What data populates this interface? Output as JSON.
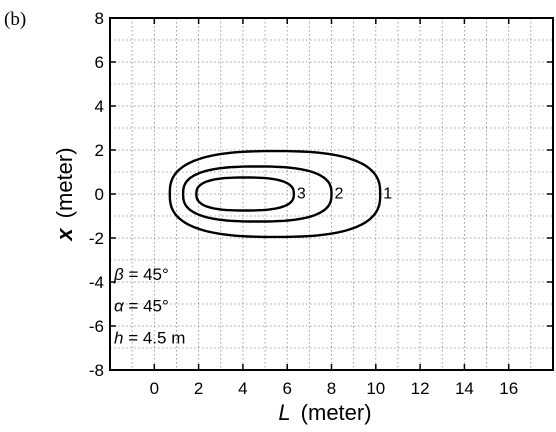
{
  "panel_label": "(b)",
  "chart_data": {
    "type": "contour",
    "xlabel_var": "L",
    "xlabel_unit": "(meter)",
    "ylabel_var": "x",
    "ylabel_unit": "(meter)",
    "xlim": [
      -2,
      18
    ],
    "ylim": [
      8,
      -8
    ],
    "x_ticks": [
      0,
      2,
      4,
      6,
      8,
      10,
      12,
      14,
      16
    ],
    "y_ticks": [
      -8,
      -6,
      -4,
      -2,
      0,
      2,
      4,
      6,
      8
    ],
    "grid": true,
    "annotations": [
      {
        "var": "h",
        "rest": " = 4.5 m"
      },
      {
        "var": "α",
        "rest": " = 45°"
      },
      {
        "var": "β",
        "rest": " = 45°"
      }
    ],
    "contours": [
      {
        "label": "1",
        "L_min": 0.7,
        "L_max": 10.2,
        "x_half_width": 1.95
      },
      {
        "label": "2",
        "L_min": 1.3,
        "L_max": 8.0,
        "x_half_width": 1.25
      },
      {
        "label": "3",
        "L_min": 1.9,
        "L_max": 6.3,
        "x_half_width": 0.75
      }
    ]
  }
}
